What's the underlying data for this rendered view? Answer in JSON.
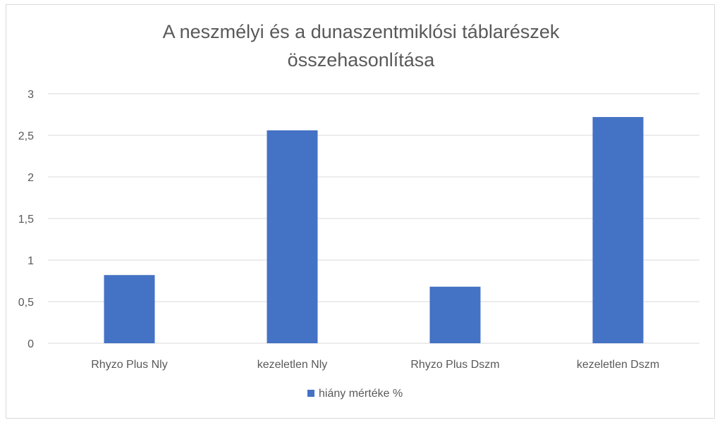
{
  "chart_data": {
    "type": "bar",
    "title_lines": [
      "A neszmélyi és a dunaszentmiklósi táblarészek",
      "összehasonlítása"
    ],
    "categories": [
      "Rhyzo Plus Nly",
      "kezeletlen Nly",
      "Rhyzo Plus Dszm",
      "kezeletlen Dszm"
    ],
    "series": [
      {
        "name": "hiány mértéke %",
        "color": "#4472c4",
        "values": [
          0.82,
          2.56,
          0.68,
          2.72
        ]
      }
    ],
    "y_ticks": [
      "0",
      "0,5",
      "1",
      "1,5",
      "2",
      "2,5",
      "3"
    ],
    "ylim": [
      0,
      3
    ],
    "grid": true,
    "legend_position": "bottom"
  }
}
